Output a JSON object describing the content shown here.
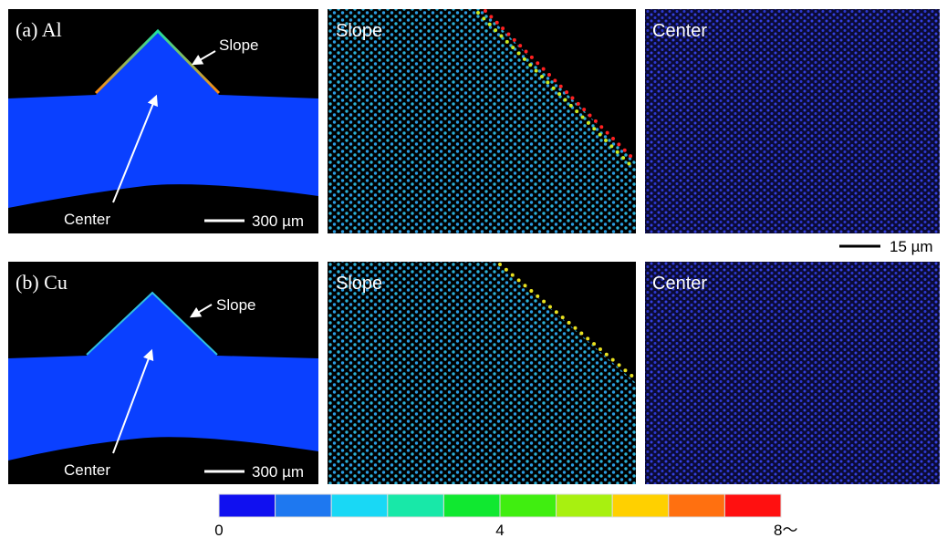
{
  "rows": [
    {
      "title": "(a) Al",
      "macro": {
        "slope_label": "Slope",
        "center_label": "Center",
        "scale_bar": "300 µm"
      },
      "slope_panel": "Slope",
      "center_panel": "Center"
    },
    {
      "title": "(b) Cu",
      "macro": {
        "slope_label": "Slope",
        "center_label": "Center",
        "scale_bar": "300 µm"
      },
      "slope_panel": "Slope",
      "center_panel": "Center"
    }
  ],
  "micro_scale_bar": "15 µm",
  "colorbar": {
    "colors": [
      "#1010f0",
      "#1e78f0",
      "#19d8f5",
      "#18e8a8",
      "#10e830",
      "#40ee10",
      "#a8f010",
      "#ffd000",
      "#ff7010",
      "#ff1010"
    ],
    "labels": [
      "0",
      "4",
      "8〜"
    ]
  }
}
